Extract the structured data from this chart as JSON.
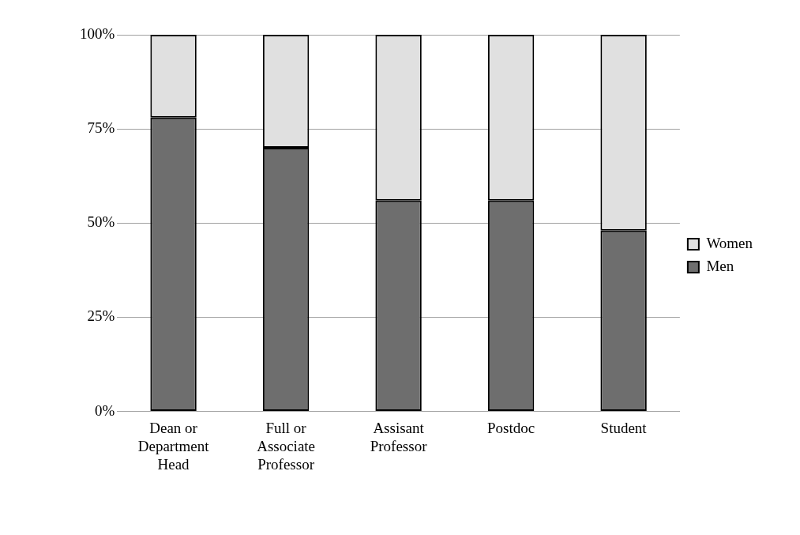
{
  "chart_data": {
    "type": "bar",
    "stacked": true,
    "categories": [
      "Dean or Department Head",
      "Full or Associate Professor",
      "Assisant Professor",
      "Postdoc",
      "Student"
    ],
    "series": [
      {
        "name": "Men",
        "color": "#6e6e6e",
        "values": [
          78,
          70,
          56,
          56,
          48
        ]
      },
      {
        "name": "Women",
        "color": "#e0e0e0",
        "values": [
          22,
          30,
          44,
          44,
          52
        ]
      }
    ],
    "ylim": [
      0,
      100
    ],
    "yticks": [
      {
        "value": 0,
        "label": "0%"
      },
      {
        "value": 25,
        "label": "25%"
      },
      {
        "value": 50,
        "label": "50%"
      },
      {
        "value": 75,
        "label": "75%"
      },
      {
        "value": 100,
        "label": "100%"
      }
    ],
    "grid": "y",
    "legend": "right"
  }
}
